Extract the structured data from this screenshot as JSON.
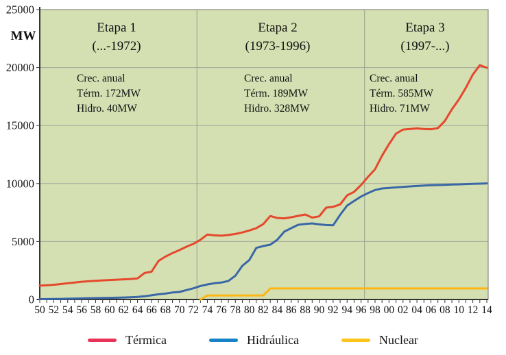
{
  "page": {
    "background": "#ffffff",
    "plot_background": "#d4dfb2"
  },
  "colors": {
    "grid": "#a2a898",
    "stage_divider": "#9aa08f",
    "frame": "#72776a",
    "axis": "#35352f",
    "text": "#111111"
  },
  "stages": [
    {
      "title": "Etapa 1",
      "range": "(...-1972)",
      "note_line1": "Crec. anual",
      "note_line2": "Térm. 172MW",
      "note_line3": "Hidro. 40MW"
    },
    {
      "title": "Etapa 2",
      "range": "(1973-1996)",
      "note_line1": "Crec. anual",
      "note_line2": "Térm. 189MW",
      "note_line3": "Hidro. 328MW"
    },
    {
      "title": "Etapa 3",
      "range": "(1997-...)",
      "note_line1": "Crec. anual",
      "note_line2": "Térm. 585MW",
      "note_line3": "Hidro. 71MW"
    }
  ],
  "legend": {
    "items": [
      {
        "label": "Térmica",
        "swatch_color": "#e73358"
      },
      {
        "label": "Hidráulica",
        "swatch_color": "#1583c5"
      },
      {
        "label": "Nuclear",
        "swatch_color": "#fcc41c"
      }
    ]
  },
  "chart_data": {
    "type": "line",
    "title": "",
    "xlabel": "",
    "ylabel": "MW",
    "ylim": [
      0,
      25000
    ],
    "yticks": [
      0,
      5000,
      10000,
      15000,
      20000,
      25000
    ],
    "ytick_labels": [
      "0",
      "5000",
      "10000",
      "15000",
      "20000",
      "25000"
    ],
    "x_start": 1950,
    "x_end": 2014,
    "x_step": 1,
    "xtick_label_step": 2,
    "xtick_labels": [
      "50",
      "52",
      "54",
      "56",
      "58",
      "60",
      "62",
      "64",
      "66",
      "68",
      "70",
      "72",
      "74",
      "76",
      "78",
      "80",
      "82",
      "84",
      "86",
      "88",
      "90",
      "92",
      "94",
      "96",
      "98",
      "00",
      "02",
      "04",
      "06",
      "08",
      "10",
      "12",
      "14"
    ],
    "grid": true,
    "legend_position": "bottom",
    "stage_divider_years": [
      1972.5,
      1996.5
    ],
    "series": [
      {
        "name": "Térmica",
        "color": "#e5482c",
        "values": [
          1200,
          1230,
          1270,
          1330,
          1400,
          1460,
          1530,
          1570,
          1610,
          1650,
          1680,
          1710,
          1740,
          1770,
          1820,
          2280,
          2400,
          3330,
          3700,
          4000,
          4260,
          4550,
          4800,
          5150,
          5600,
          5530,
          5500,
          5560,
          5650,
          5780,
          5950,
          6150,
          6500,
          7200,
          7030,
          7000,
          7090,
          7210,
          7330,
          7060,
          7170,
          7920,
          7990,
          8200,
          8980,
          9280,
          9870,
          10580,
          11230,
          12400,
          13400,
          14300,
          14650,
          14700,
          14760,
          14700,
          14680,
          14780,
          15400,
          16400,
          17250,
          18250,
          19400,
          20200,
          19980
        ]
      },
      {
        "name": "Hidráulica",
        "color": "#3a67a5",
        "values": [
          30,
          35,
          45,
          55,
          65,
          80,
          95,
          110,
          120,
          130,
          140,
          155,
          170,
          190,
          220,
          280,
          360,
          450,
          510,
          600,
          650,
          810,
          965,
          1165,
          1300,
          1400,
          1460,
          1600,
          2050,
          2900,
          3400,
          4450,
          4610,
          4730,
          5150,
          5850,
          6150,
          6440,
          6520,
          6560,
          6480,
          6420,
          6400,
          7300,
          8100,
          8490,
          8880,
          9180,
          9440,
          9575,
          9620,
          9670,
          9710,
          9750,
          9790,
          9830,
          9850,
          9870,
          9890,
          9910,
          9930,
          9950,
          9970,
          9990,
          10010
        ]
      },
      {
        "name": "Nuclear",
        "color": "#fbb612",
        "values": [
          null,
          null,
          null,
          null,
          null,
          null,
          null,
          null,
          null,
          null,
          null,
          null,
          null,
          null,
          null,
          null,
          null,
          null,
          null,
          null,
          null,
          null,
          null,
          0,
          350,
          350,
          350,
          350,
          350,
          350,
          350,
          350,
          350,
          950,
          950,
          950,
          950,
          950,
          950,
          950,
          950,
          950,
          950,
          950,
          950,
          950,
          950,
          950,
          950,
          950,
          950,
          950,
          950,
          950,
          950,
          950,
          950,
          950,
          950,
          950,
          950,
          950,
          950,
          950,
          950
        ]
      }
    ]
  }
}
